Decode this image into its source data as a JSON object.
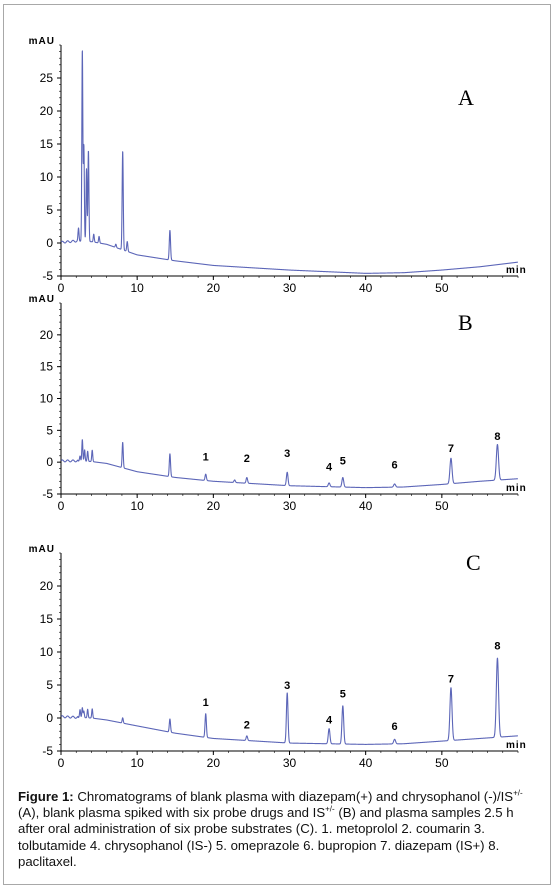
{
  "chart_data": [
    {
      "type": "line",
      "panel_label": "A",
      "ylabel": "mAU",
      "xlabel": "min",
      "xlim": [
        0,
        60
      ],
      "ylim": [
        -5,
        30
      ],
      "x_ticks": [
        0,
        10,
        20,
        30,
        40,
        50
      ],
      "y_ticks": [
        -5,
        0,
        5,
        10,
        15,
        20,
        25
      ],
      "color": "#5c66b8",
      "baseline": [
        [
          0,
          0.1
        ],
        [
          2,
          0.3
        ],
        [
          4,
          0.2
        ],
        [
          6,
          -0.2
        ],
        [
          10,
          -1.8
        ],
        [
          15,
          -2.7
        ],
        [
          20,
          -3.4
        ],
        [
          30,
          -4.1
        ],
        [
          40,
          -4.6
        ],
        [
          45,
          -4.5
        ],
        [
          50,
          -4.1
        ],
        [
          55,
          -3.6
        ],
        [
          60,
          -2.9
        ]
      ],
      "peaks": [
        {
          "rt": 2.3,
          "height": 2.0
        },
        {
          "rt": 2.8,
          "height": 29.0
        },
        {
          "rt": 3.0,
          "height": 14.5
        },
        {
          "rt": 3.35,
          "height": 11.0
        },
        {
          "rt": 3.6,
          "height": 13.8
        },
        {
          "rt": 4.3,
          "height": 1.2
        },
        {
          "rt": 5.0,
          "height": 1.0
        },
        {
          "rt": 7.2,
          "height": 0.5
        },
        {
          "rt": 8.1,
          "height": 15.0
        },
        {
          "rt": 8.7,
          "height": 1.5
        },
        {
          "rt": 14.3,
          "height": 4.5
        }
      ],
      "annotations": []
    },
    {
      "type": "line",
      "panel_label": "B",
      "ylabel": "mAU",
      "xlabel": "min",
      "xlim": [
        0,
        60
      ],
      "ylim": [
        -5,
        25
      ],
      "x_ticks": [
        0,
        10,
        20,
        30,
        40,
        50
      ],
      "y_ticks": [
        -5,
        0,
        5,
        10,
        15,
        20
      ],
      "color": "#5c66b8",
      "baseline": [
        [
          0,
          0.2
        ],
        [
          2,
          0.2
        ],
        [
          4,
          0.1
        ],
        [
          6,
          -0.2
        ],
        [
          10,
          -1.5
        ],
        [
          15,
          -2.4
        ],
        [
          20,
          -3.0
        ],
        [
          30,
          -3.7
        ],
        [
          40,
          -4.0
        ],
        [
          45,
          -3.9
        ],
        [
          50,
          -3.5
        ],
        [
          55,
          -3.0
        ],
        [
          60,
          -2.6
        ]
      ],
      "peaks": [
        {
          "rt": 2.5,
          "height": 0.8
        },
        {
          "rt": 2.8,
          "height": 3.4
        },
        {
          "rt": 3.1,
          "height": 1.8
        },
        {
          "rt": 3.5,
          "height": 1.6
        },
        {
          "rt": 4.1,
          "height": 1.8
        },
        {
          "rt": 8.1,
          "height": 4.0
        },
        {
          "rt": 14.3,
          "height": 3.6
        },
        {
          "rt": 19.0,
          "height": 1.0
        },
        {
          "rt": 22.8,
          "height": 0.4
        },
        {
          "rt": 24.4,
          "height": 0.9
        },
        {
          "rt": 29.7,
          "height": 2.1
        },
        {
          "rt": 35.2,
          "height": 0.6
        },
        {
          "rt": 37.0,
          "height": 1.5
        },
        {
          "rt": 43.8,
          "height": 0.5
        },
        {
          "rt": 51.2,
          "height": 4.0
        },
        {
          "rt": 57.3,
          "height": 5.6
        }
      ],
      "annotations": [
        {
          "text": "1",
          "x": 19.0,
          "y": 0.3
        },
        {
          "text": "2",
          "x": 24.4,
          "y": 0.0
        },
        {
          "text": "3",
          "x": 29.7,
          "y": 0.8
        },
        {
          "text": "4",
          "x": 35.2,
          "y": -1.3
        },
        {
          "text": "5",
          "x": 37.0,
          "y": -0.4
        },
        {
          "text": "6",
          "x": 43.8,
          "y": -1.0
        },
        {
          "text": "7",
          "x": 51.2,
          "y": 1.6
        },
        {
          "text": "8",
          "x": 57.3,
          "y": 3.5
        }
      ]
    },
    {
      "type": "line",
      "panel_label": "C",
      "ylabel": "mAU",
      "xlabel": "min",
      "xlim": [
        0,
        60
      ],
      "ylim": [
        -5,
        25
      ],
      "x_ticks": [
        0,
        10,
        20,
        30,
        40,
        50
      ],
      "y_ticks": [
        -5,
        0,
        5,
        10,
        15,
        20
      ],
      "color": "#5c66b8",
      "baseline": [
        [
          0,
          0.2
        ],
        [
          2,
          0.1
        ],
        [
          4,
          0.0
        ],
        [
          6,
          -0.3
        ],
        [
          10,
          -1.2
        ],
        [
          15,
          -2.3
        ],
        [
          20,
          -3.1
        ],
        [
          30,
          -3.8
        ],
        [
          40,
          -4.0
        ],
        [
          45,
          -3.9
        ],
        [
          50,
          -3.5
        ],
        [
          55,
          -3.1
        ],
        [
          60,
          -2.7
        ]
      ],
      "peaks": [
        {
          "rt": 2.5,
          "height": 1.2
        },
        {
          "rt": 2.8,
          "height": 1.5
        },
        {
          "rt": 3.0,
          "height": 1.0
        },
        {
          "rt": 3.5,
          "height": 1.3
        },
        {
          "rt": 4.1,
          "height": 1.4
        },
        {
          "rt": 8.1,
          "height": 0.8
        },
        {
          "rt": 14.3,
          "height": 2.0
        },
        {
          "rt": 19.0,
          "height": 3.6
        },
        {
          "rt": 24.4,
          "height": 0.7
        },
        {
          "rt": 29.7,
          "height": 7.6
        },
        {
          "rt": 35.2,
          "height": 2.3
        },
        {
          "rt": 37.0,
          "height": 5.8
        },
        {
          "rt": 43.8,
          "height": 0.7
        },
        {
          "rt": 51.2,
          "height": 8.0
        },
        {
          "rt": 57.3,
          "height": 12.0
        }
      ],
      "annotations": [
        {
          "text": "1",
          "x": 19.0,
          "y": 1.8
        },
        {
          "text": "2",
          "x": 24.4,
          "y": -1.6
        },
        {
          "text": "3",
          "x": 29.7,
          "y": 4.4
        },
        {
          "text": "4",
          "x": 35.2,
          "y": -0.8
        },
        {
          "text": "5",
          "x": 37.0,
          "y": 3.1
        },
        {
          "text": "6",
          "x": 43.8,
          "y": -1.8
        },
        {
          "text": "7",
          "x": 51.2,
          "y": 5.4
        },
        {
          "text": "8",
          "x": 57.3,
          "y": 10.4
        }
      ]
    }
  ],
  "caption": {
    "label": "Figure 1:",
    "text_1": " Chromatograms of blank plasma with diazepam(+) and chrysophanol (-)/IS",
    "sup_1": "+/-",
    "text_2": " (A), blank plasma spiked with six probe drugs and IS",
    "sup_2": "+/-",
    "text_3": " (B) and plasma samples 2.5 h after oral administration of six probe substrates (C). 1. metoprolol 2. coumarin 3. tolbutamide 4. chrysophanol (IS-) 5. omeprazole 6. bupropion 7. diazepam (IS+) 8. paclitaxel."
  }
}
